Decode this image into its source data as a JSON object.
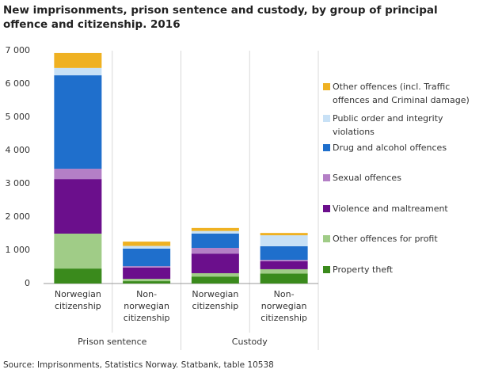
{
  "chart_data": {
    "type": "stacked-bar",
    "title": "New imprisonments, prison sentence and custody, by group of principal offence and citizenship. 2016",
    "source": "Source: Imprisonments, Statistics Norway. Statbank, table 10538",
    "categories": [
      [
        "Norwegian",
        "citizenship"
      ],
      [
        "Non-",
        "norwegian",
        "citizenship"
      ],
      [
        "Norwegian",
        "citizenship"
      ],
      [
        "Non-",
        "norwegian",
        "citizenship"
      ]
    ],
    "groups": [
      "Prison sentence",
      "Custody"
    ],
    "series": [
      {
        "name": "Property theft",
        "color": "#3a8a1c",
        "values": [
          450,
          70,
          210,
          300
        ]
      },
      {
        "name": "Other offences for profit",
        "color": "#a0cc87",
        "values": [
          1050,
          70,
          100,
          130
        ]
      },
      {
        "name": "Violence and maltreament",
        "color": "#6b0f8c",
        "values": [
          1640,
          340,
          590,
          240
        ]
      },
      {
        "name": "Sexual offences",
        "color": "#b47fc6",
        "values": [
          310,
          40,
          170,
          40
        ]
      },
      {
        "name": "Drug and alcohol offences",
        "color": "#1f6fcc",
        "values": [
          2810,
          530,
          430,
          410
        ]
      },
      {
        "name": "Public order and integrity violations",
        "color": "#c8e1f6",
        "values": [
          220,
          80,
          80,
          330
        ]
      },
      {
        "name": "Other offences (incl. Traffic offences and Criminal damage)",
        "color": "#efb122",
        "values": [
          450,
          130,
          90,
          70
        ]
      }
    ],
    "ylim": [
      0,
      7000
    ],
    "yticks": [
      0,
      {
        "value": 1000,
        "label": "1 000"
      },
      {
        "value": 2000,
        "label": "2 000"
      },
      {
        "value": 3000,
        "label": "3 000"
      },
      {
        "value": 4000,
        "label": "4 000"
      },
      {
        "value": 5000,
        "label": "5 000"
      },
      {
        "value": 6000,
        "label": "6 000"
      },
      {
        "value": 7000,
        "label": "7 000"
      }
    ],
    "grid": false
  }
}
